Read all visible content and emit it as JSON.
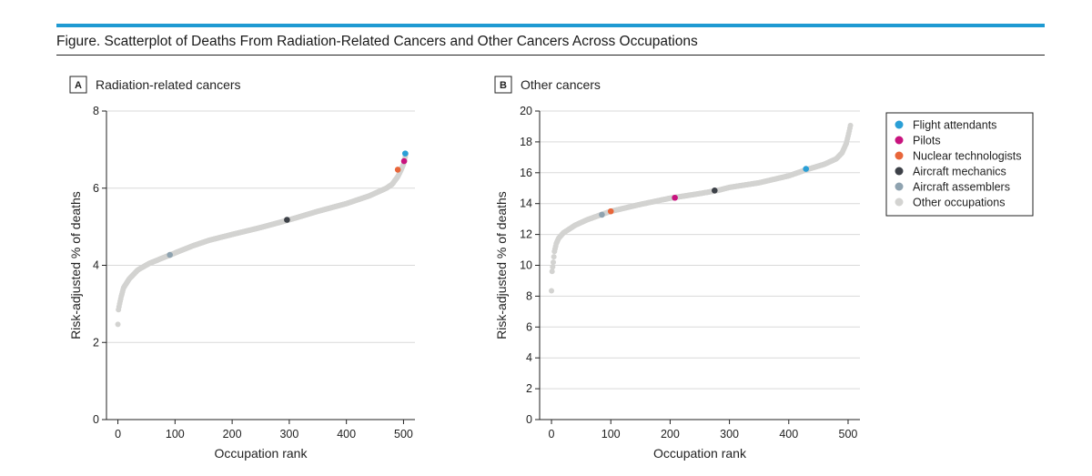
{
  "figure": {
    "title": "Figure. Scatterplot of Deaths From Radiation-Related Cancers and Other Cancers Across Occupations",
    "accent_color": "#1f9ad2"
  },
  "legend": {
    "items": [
      {
        "label": "Flight attendants",
        "color": "#2a9fd6"
      },
      {
        "label": "Pilots",
        "color": "#c8137e"
      },
      {
        "label": "Nuclear technologists",
        "color": "#e8663a"
      },
      {
        "label": "Aircraft mechanics",
        "color": "#3d4148"
      },
      {
        "label": "Aircraft assemblers",
        "color": "#8fa3b0"
      },
      {
        "label": "Other occupations",
        "color": "#d3d3d1"
      }
    ]
  },
  "chart_data": [
    {
      "type": "scatter",
      "panel_letter": "A",
      "title": "Radiation-related cancers",
      "xlabel": "Occupation rank",
      "ylabel": "Risk-adjusted % of deaths",
      "xlim": [
        -20,
        520
      ],
      "ylim": [
        0,
        8
      ],
      "xticks": [
        0,
        100,
        200,
        300,
        400,
        500
      ],
      "yticks": [
        0,
        2,
        4,
        6,
        8
      ],
      "grid": "horizontal",
      "n_points": 505,
      "curve": [
        [
          0,
          2.47
        ],
        [
          1,
          2.85
        ],
        [
          3,
          3.0
        ],
        [
          6,
          3.2
        ],
        [
          10,
          3.42
        ],
        [
          20,
          3.65
        ],
        [
          35,
          3.88
        ],
        [
          55,
          4.05
        ],
        [
          80,
          4.2
        ],
        [
          100,
          4.32
        ],
        [
          130,
          4.5
        ],
        [
          160,
          4.65
        ],
        [
          200,
          4.8
        ],
        [
          250,
          4.98
        ],
        [
          300,
          5.18
        ],
        [
          350,
          5.4
        ],
        [
          400,
          5.6
        ],
        [
          440,
          5.8
        ],
        [
          470,
          6.0
        ],
        [
          480,
          6.1
        ],
        [
          490,
          6.3
        ],
        [
          495,
          6.45
        ],
        [
          500,
          6.62
        ],
        [
          505,
          6.95
        ]
      ],
      "highlights": [
        {
          "group": "Flight attendants",
          "x": 503,
          "y": 6.9
        },
        {
          "group": "Pilots",
          "x": 501,
          "y": 6.7
        },
        {
          "group": "Nuclear technologists",
          "x": 490,
          "y": 6.48
        },
        {
          "group": "Aircraft mechanics",
          "x": 296,
          "y": 5.18
        },
        {
          "group": "Aircraft assemblers",
          "x": 91,
          "y": 4.27
        }
      ]
    },
    {
      "type": "scatter",
      "panel_letter": "B",
      "title": "Other cancers",
      "xlabel": "Occupation rank",
      "ylabel": "Risk-adjusted % of deaths",
      "xlim": [
        -20,
        520
      ],
      "ylim": [
        0,
        20
      ],
      "xticks": [
        0,
        100,
        200,
        300,
        400,
        500
      ],
      "yticks": [
        0,
        2,
        4,
        6,
        8,
        10,
        12,
        14,
        16,
        18,
        20
      ],
      "grid": "horizontal",
      "n_points": 505,
      "curve": [
        [
          0,
          8.35
        ],
        [
          1,
          9.6
        ],
        [
          3,
          10.2
        ],
        [
          5,
          10.9
        ],
        [
          8,
          11.4
        ],
        [
          12,
          11.75
        ],
        [
          20,
          12.1
        ],
        [
          40,
          12.6
        ],
        [
          60,
          12.95
        ],
        [
          85,
          13.3
        ],
        [
          100,
          13.5
        ],
        [
          150,
          13.95
        ],
        [
          200,
          14.35
        ],
        [
          250,
          14.65
        ],
        [
          280,
          14.85
        ],
        [
          300,
          15.05
        ],
        [
          350,
          15.35
        ],
        [
          400,
          15.8
        ],
        [
          430,
          16.2
        ],
        [
          460,
          16.55
        ],
        [
          480,
          16.9
        ],
        [
          490,
          17.3
        ],
        [
          497,
          17.9
        ],
        [
          502,
          18.7
        ],
        [
          505,
          19.25
        ]
      ],
      "highlights": [
        {
          "group": "Flight attendants",
          "x": 429,
          "y": 16.25
        },
        {
          "group": "Pilots",
          "x": 208,
          "y": 14.38
        },
        {
          "group": "Nuclear technologists",
          "x": 100,
          "y": 13.5
        },
        {
          "group": "Aircraft mechanics",
          "x": 275,
          "y": 14.85
        },
        {
          "group": "Aircraft assemblers",
          "x": 85,
          "y": 13.28
        }
      ]
    }
  ]
}
